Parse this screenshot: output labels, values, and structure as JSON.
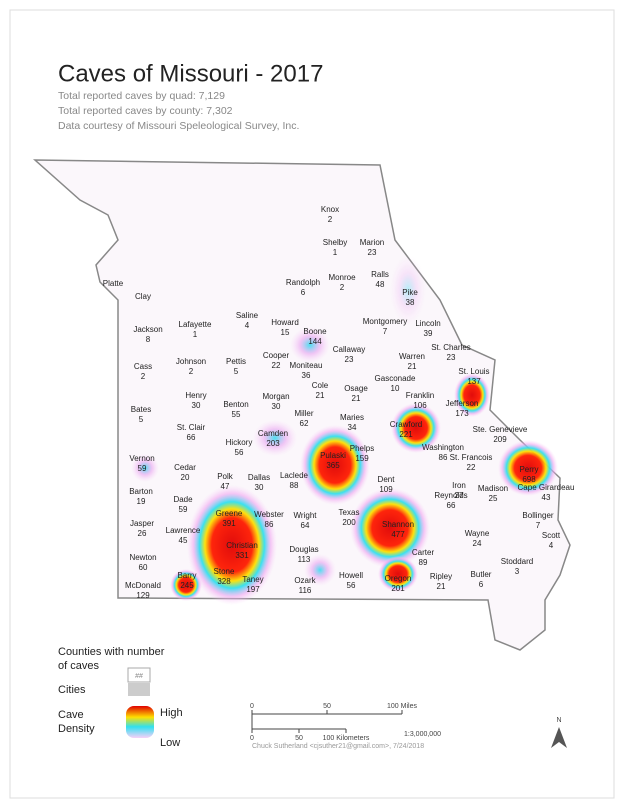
{
  "header": {
    "title": "Caves of Missouri - 2017",
    "subtitle_lines": [
      "Total reported caves by quad: 7,129",
      "Total reported caves by county: 7,302",
      "Data courtesy of Missouri Speleological Survey, Inc."
    ]
  },
  "counties": [
    {
      "name": "Knox",
      "caves": 2
    },
    {
      "name": "Shelby",
      "caves": 1
    },
    {
      "name": "Marion",
      "caves": 23
    },
    {
      "name": "Ralls",
      "caves": 48
    },
    {
      "name": "Monroe",
      "caves": 2
    },
    {
      "name": "Randolph",
      "caves": 6
    },
    {
      "name": "Pike",
      "caves": 38
    },
    {
      "name": "Platte"
    },
    {
      "name": "Clay"
    },
    {
      "name": "Jackson",
      "caves": 8
    },
    {
      "name": "Lafayette",
      "caves": 1
    },
    {
      "name": "Saline",
      "caves": 4
    },
    {
      "name": "Howard",
      "caves": 15
    },
    {
      "name": "Boone",
      "caves": 144
    },
    {
      "name": "Montgomery",
      "caves": 7
    },
    {
      "name": "Lincoln",
      "caves": 39
    },
    {
      "name": "Cooper",
      "caves": 22
    },
    {
      "name": "Callaway",
      "caves": 23
    },
    {
      "name": "Moniteau",
      "caves": 36
    },
    {
      "name": "Cass",
      "caves": 2
    },
    {
      "name": "Johnson",
      "caves": 2
    },
    {
      "name": "Pettis",
      "caves": 5
    },
    {
      "name": "Warren",
      "caves": 21
    },
    {
      "name": "St. Charles",
      "caves": 23
    },
    {
      "name": "St. Louis",
      "caves": 137
    },
    {
      "name": "Cole",
      "caves": 21
    },
    {
      "name": "Osage",
      "caves": 21
    },
    {
      "name": "Gasconade",
      "caves": 10
    },
    {
      "name": "Franklin",
      "caves": 106
    },
    {
      "name": "Jefferson",
      "caves": 173
    },
    {
      "name": "Henry",
      "caves": 30
    },
    {
      "name": "Benton",
      "caves": 55
    },
    {
      "name": "Morgan",
      "caves": 30
    },
    {
      "name": "Bates",
      "caves": 5
    },
    {
      "name": "Miller",
      "caves": 62
    },
    {
      "name": "Maries",
      "caves": 34
    },
    {
      "name": "Crawford",
      "caves": 221
    },
    {
      "name": "St. Clair",
      "caves": 66
    },
    {
      "name": "Camden",
      "caves": 203
    },
    {
      "name": "Hickory",
      "caves": 56
    },
    {
      "name": "Pulaski",
      "caves": 365
    },
    {
      "name": "Phelps",
      "caves": 159
    },
    {
      "name": "Washington",
      "caves": 86
    },
    {
      "name": "Ste. Genevieve",
      "caves": 209
    },
    {
      "name": "St. Francois",
      "caves": 22
    },
    {
      "name": "Perry",
      "caves": 698
    },
    {
      "name": "Vernon",
      "caves": 59
    },
    {
      "name": "Cedar",
      "caves": 20
    },
    {
      "name": "Polk",
      "caves": 47
    },
    {
      "name": "Dallas",
      "caves": 30
    },
    {
      "name": "Laclede",
      "caves": 88
    },
    {
      "name": "Dent",
      "caves": 109
    },
    {
      "name": "Iron",
      "caves": 27
    },
    {
      "name": "Madison",
      "caves": 25
    },
    {
      "name": "Cape Girardeau",
      "caves": 43
    },
    {
      "name": "Barton",
      "caves": 19
    },
    {
      "name": "Dade",
      "caves": 59
    },
    {
      "name": "Greene",
      "caves": 391
    },
    {
      "name": "Webster",
      "caves": 86
    },
    {
      "name": "Wright",
      "caves": 64
    },
    {
      "name": "Texas",
      "caves": 200
    },
    {
      "name": "Shannon",
      "caves": 477
    },
    {
      "name": "Reynolds",
      "caves": 66
    },
    {
      "name": "Bollinger",
      "caves": 7
    },
    {
      "name": "Jasper",
      "caves": 26
    },
    {
      "name": "Lawrence",
      "caves": 45
    },
    {
      "name": "Christian",
      "caves": 331
    },
    {
      "name": "Douglas",
      "caves": 113
    },
    {
      "name": "Carter",
      "caves": 89
    },
    {
      "name": "Wayne",
      "caves": 24
    },
    {
      "name": "Scott",
      "caves": 4
    },
    {
      "name": "Newton",
      "caves": 60
    },
    {
      "name": "Barry",
      "caves": 245
    },
    {
      "name": "Stone",
      "caves": 328
    },
    {
      "name": "Taney",
      "caves": 197
    },
    {
      "name": "Ozark",
      "caves": 116
    },
    {
      "name": "Howell",
      "caves": 56
    },
    {
      "name": "Oregon",
      "caves": 201
    },
    {
      "name": "Ripley",
      "caves": 21
    },
    {
      "name": "Butler",
      "caves": 6
    },
    {
      "name": "Stoddard",
      "caves": 3
    },
    {
      "name": "McDonald",
      "caves": 129
    }
  ],
  "legend": {
    "counties_lines": [
      "Counties with number",
      "of caves"
    ],
    "counties_symbol": "##",
    "cities": "Cities",
    "density_lines": [
      "Cave",
      "Density"
    ],
    "high": "High",
    "low": "Low"
  },
  "scale_bar": {
    "miles": [
      "0",
      "50",
      "100 Miles"
    ],
    "kilometers": [
      "0",
      "50",
      "100 Kilometers"
    ],
    "ratio": "1:3,000,000"
  },
  "credit": "Chuck Sutherland <cjsuther21@gmail.com>, 7/24/2018",
  "north": "N"
}
